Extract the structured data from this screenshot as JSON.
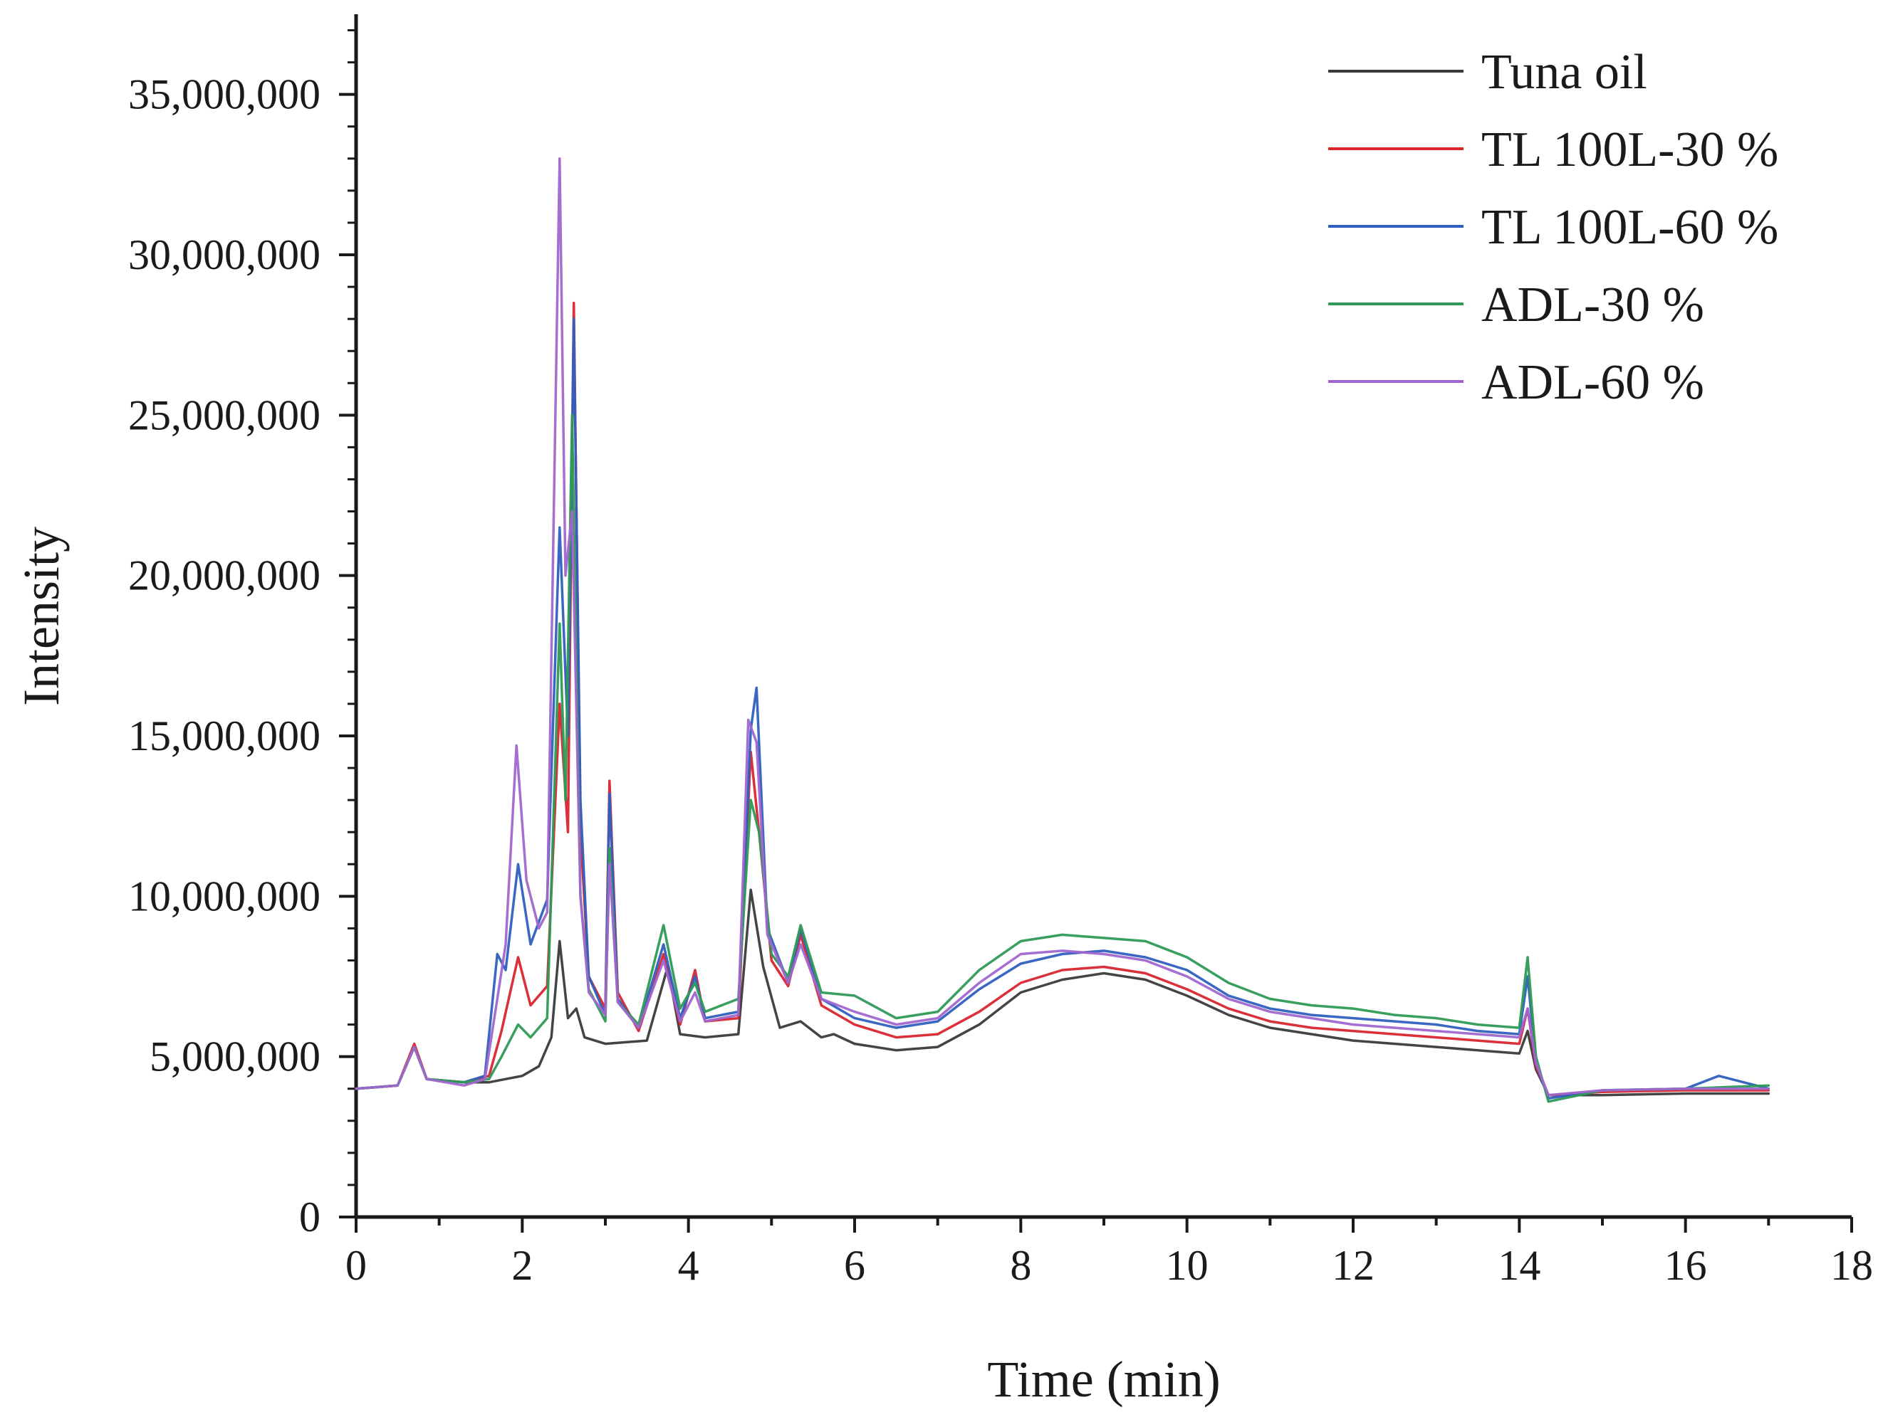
{
  "chart_data": {
    "type": "line",
    "title": "",
    "xlabel": "Time (min)",
    "ylabel": "Intensity",
    "xlim": [
      0,
      18
    ],
    "ylim": [
      0,
      37500000
    ],
    "x_ticks": [
      0,
      2,
      4,
      6,
      8,
      10,
      12,
      14,
      16,
      18
    ],
    "x_tick_labels": [
      "0",
      "2",
      "4",
      "6",
      "8",
      "10",
      "12",
      "14",
      "16",
      "18"
    ],
    "y_ticks": [
      0,
      5000000,
      10000000,
      15000000,
      20000000,
      25000000,
      30000000,
      35000000
    ],
    "y_tick_labels": [
      "0",
      "5,000,000",
      "10,000,000",
      "15,000,000",
      "20,000,000",
      "25,000,000",
      "30,000,000",
      "35,000,000"
    ],
    "legend_position": "top-right",
    "grid": false,
    "series": [
      {
        "name": "Tuna oil",
        "color": "#3a3a3a",
        "points": [
          [
            0,
            4000000
          ],
          [
            0.5,
            4100000
          ],
          [
            0.7,
            5300000
          ],
          [
            0.85,
            4300000
          ],
          [
            1.3,
            4200000
          ],
          [
            1.6,
            4200000
          ],
          [
            2.0,
            4400000
          ],
          [
            2.2,
            4700000
          ],
          [
            2.35,
            5600000
          ],
          [
            2.45,
            8600000
          ],
          [
            2.55,
            6200000
          ],
          [
            2.65,
            6500000
          ],
          [
            2.75,
            5600000
          ],
          [
            3.0,
            5400000
          ],
          [
            3.5,
            5500000
          ],
          [
            3.75,
            7800000
          ],
          [
            3.9,
            5700000
          ],
          [
            4.2,
            5600000
          ],
          [
            4.6,
            5700000
          ],
          [
            4.75,
            10200000
          ],
          [
            4.9,
            7800000
          ],
          [
            5.1,
            5900000
          ],
          [
            5.35,
            6100000
          ],
          [
            5.6,
            5600000
          ],
          [
            5.75,
            5700000
          ],
          [
            6.0,
            5400000
          ],
          [
            6.5,
            5200000
          ],
          [
            7.0,
            5300000
          ],
          [
            7.5,
            6000000
          ],
          [
            8.0,
            7000000
          ],
          [
            8.5,
            7400000
          ],
          [
            9.0,
            7600000
          ],
          [
            9.5,
            7400000
          ],
          [
            10.0,
            6900000
          ],
          [
            10.5,
            6300000
          ],
          [
            11.0,
            5900000
          ],
          [
            11.5,
            5700000
          ],
          [
            12.0,
            5500000
          ],
          [
            12.5,
            5400000
          ],
          [
            13.0,
            5300000
          ],
          [
            13.5,
            5200000
          ],
          [
            14.0,
            5100000
          ],
          [
            14.1,
            5800000
          ],
          [
            14.2,
            4600000
          ],
          [
            14.35,
            3800000
          ],
          [
            15.0,
            3800000
          ],
          [
            16.0,
            3850000
          ],
          [
            17.0,
            3850000
          ]
        ]
      },
      {
        "name": "TL 100L-30 %",
        "color": "#d9252e",
        "points": [
          [
            0,
            4000000
          ],
          [
            0.5,
            4100000
          ],
          [
            0.7,
            5400000
          ],
          [
            0.85,
            4300000
          ],
          [
            1.3,
            4200000
          ],
          [
            1.6,
            4400000
          ],
          [
            1.75,
            5800000
          ],
          [
            1.95,
            8100000
          ],
          [
            2.1,
            6600000
          ],
          [
            2.3,
            7200000
          ],
          [
            2.45,
            16000000
          ],
          [
            2.55,
            12000000
          ],
          [
            2.62,
            28500000
          ],
          [
            2.7,
            12000000
          ],
          [
            2.8,
            7500000
          ],
          [
            3.0,
            6500000
          ],
          [
            3.05,
            13600000
          ],
          [
            3.15,
            7000000
          ],
          [
            3.4,
            5800000
          ],
          [
            3.7,
            8200000
          ],
          [
            3.9,
            6000000
          ],
          [
            4.08,
            7700000
          ],
          [
            4.2,
            6100000
          ],
          [
            4.6,
            6200000
          ],
          [
            4.75,
            14500000
          ],
          [
            4.85,
            12000000
          ],
          [
            5.0,
            8000000
          ],
          [
            5.2,
            7200000
          ],
          [
            5.35,
            8800000
          ],
          [
            5.6,
            6600000
          ],
          [
            6.0,
            6000000
          ],
          [
            6.5,
            5600000
          ],
          [
            7.0,
            5700000
          ],
          [
            7.5,
            6400000
          ],
          [
            8.0,
            7300000
          ],
          [
            8.5,
            7700000
          ],
          [
            9.0,
            7800000
          ],
          [
            9.5,
            7600000
          ],
          [
            10.0,
            7100000
          ],
          [
            10.5,
            6500000
          ],
          [
            11.0,
            6100000
          ],
          [
            11.5,
            5900000
          ],
          [
            12.0,
            5800000
          ],
          [
            12.5,
            5700000
          ],
          [
            13.0,
            5600000
          ],
          [
            13.5,
            5500000
          ],
          [
            14.0,
            5400000
          ],
          [
            14.1,
            6500000
          ],
          [
            14.2,
            4700000
          ],
          [
            14.35,
            3800000
          ],
          [
            15.0,
            3900000
          ],
          [
            16.0,
            3950000
          ],
          [
            17.0,
            3950000
          ]
        ]
      },
      {
        "name": "TL 100L-60 %",
        "color": "#2f5fbf",
        "points": [
          [
            0,
            4000000
          ],
          [
            0.5,
            4100000
          ],
          [
            0.7,
            5300000
          ],
          [
            0.85,
            4300000
          ],
          [
            1.3,
            4200000
          ],
          [
            1.55,
            4400000
          ],
          [
            1.7,
            8200000
          ],
          [
            1.8,
            7700000
          ],
          [
            1.95,
            11000000
          ],
          [
            2.1,
            8500000
          ],
          [
            2.3,
            9900000
          ],
          [
            2.45,
            21500000
          ],
          [
            2.55,
            15000000
          ],
          [
            2.62,
            28000000
          ],
          [
            2.7,
            13000000
          ],
          [
            2.8,
            7500000
          ],
          [
            3.0,
            6300000
          ],
          [
            3.05,
            13200000
          ],
          [
            3.15,
            6800000
          ],
          [
            3.4,
            5900000
          ],
          [
            3.7,
            8500000
          ],
          [
            3.9,
            6200000
          ],
          [
            4.08,
            7500000
          ],
          [
            4.2,
            6200000
          ],
          [
            4.6,
            6400000
          ],
          [
            4.75,
            15200000
          ],
          [
            4.82,
            16500000
          ],
          [
            4.95,
            9000000
          ],
          [
            5.2,
            7300000
          ],
          [
            5.35,
            9000000
          ],
          [
            5.6,
            6800000
          ],
          [
            6.0,
            6200000
          ],
          [
            6.5,
            5900000
          ],
          [
            7.0,
            6100000
          ],
          [
            7.5,
            7100000
          ],
          [
            8.0,
            7900000
          ],
          [
            8.5,
            8200000
          ],
          [
            9.0,
            8300000
          ],
          [
            9.5,
            8100000
          ],
          [
            10.0,
            7700000
          ],
          [
            10.5,
            6900000
          ],
          [
            11.0,
            6500000
          ],
          [
            11.5,
            6300000
          ],
          [
            12.0,
            6200000
          ],
          [
            12.5,
            6100000
          ],
          [
            13.0,
            6000000
          ],
          [
            13.5,
            5800000
          ],
          [
            14.0,
            5700000
          ],
          [
            14.1,
            7500000
          ],
          [
            14.2,
            4800000
          ],
          [
            14.35,
            3700000
          ],
          [
            15.0,
            3950000
          ],
          [
            16.0,
            4000000
          ],
          [
            16.4,
            4400000
          ],
          [
            17.0,
            4000000
          ]
        ]
      },
      {
        "name": "ADL-30 %",
        "color": "#2e9a55",
        "points": [
          [
            0,
            4000000
          ],
          [
            0.5,
            4100000
          ],
          [
            0.7,
            5300000
          ],
          [
            0.85,
            4300000
          ],
          [
            1.3,
            4200000
          ],
          [
            1.6,
            4300000
          ],
          [
            1.75,
            5000000
          ],
          [
            1.95,
            6000000
          ],
          [
            2.1,
            5600000
          ],
          [
            2.3,
            6200000
          ],
          [
            2.45,
            18500000
          ],
          [
            2.52,
            13000000
          ],
          [
            2.6,
            25000000
          ],
          [
            2.7,
            10000000
          ],
          [
            2.8,
            7100000
          ],
          [
            3.0,
            6100000
          ],
          [
            3.05,
            11500000
          ],
          [
            3.15,
            6700000
          ],
          [
            3.4,
            6000000
          ],
          [
            3.7,
            9100000
          ],
          [
            3.9,
            6500000
          ],
          [
            4.08,
            7300000
          ],
          [
            4.2,
            6400000
          ],
          [
            4.6,
            6800000
          ],
          [
            4.75,
            13000000
          ],
          [
            4.85,
            12000000
          ],
          [
            5.0,
            8200000
          ],
          [
            5.2,
            7500000
          ],
          [
            5.35,
            9100000
          ],
          [
            5.6,
            7000000
          ],
          [
            6.0,
            6900000
          ],
          [
            6.5,
            6200000
          ],
          [
            7.0,
            6400000
          ],
          [
            7.5,
            7700000
          ],
          [
            8.0,
            8600000
          ],
          [
            8.5,
            8800000
          ],
          [
            9.0,
            8700000
          ],
          [
            9.5,
            8600000
          ],
          [
            10.0,
            8100000
          ],
          [
            10.5,
            7300000
          ],
          [
            11.0,
            6800000
          ],
          [
            11.5,
            6600000
          ],
          [
            12.0,
            6500000
          ],
          [
            12.5,
            6300000
          ],
          [
            13.0,
            6200000
          ],
          [
            13.5,
            6000000
          ],
          [
            14.0,
            5900000
          ],
          [
            14.1,
            8100000
          ],
          [
            14.2,
            5000000
          ],
          [
            14.35,
            3600000
          ],
          [
            15.0,
            3950000
          ],
          [
            16.0,
            4000000
          ],
          [
            17.0,
            4100000
          ]
        ]
      },
      {
        "name": "ADL-60 %",
        "color": "#a066cf",
        "points": [
          [
            0,
            4000000
          ],
          [
            0.5,
            4100000
          ],
          [
            0.7,
            5300000
          ],
          [
            0.85,
            4300000
          ],
          [
            1.3,
            4100000
          ],
          [
            1.55,
            4300000
          ],
          [
            1.7,
            6800000
          ],
          [
            1.8,
            8500000
          ],
          [
            1.93,
            14700000
          ],
          [
            2.05,
            10500000
          ],
          [
            2.2,
            9000000
          ],
          [
            2.3,
            9500000
          ],
          [
            2.45,
            33000000
          ],
          [
            2.52,
            20000000
          ],
          [
            2.6,
            22000000
          ],
          [
            2.7,
            10000000
          ],
          [
            2.8,
            7000000
          ],
          [
            3.0,
            6300000
          ],
          [
            3.05,
            11000000
          ],
          [
            3.15,
            6700000
          ],
          [
            3.4,
            5900000
          ],
          [
            3.7,
            8000000
          ],
          [
            3.9,
            6100000
          ],
          [
            4.08,
            7000000
          ],
          [
            4.2,
            6100000
          ],
          [
            4.6,
            6300000
          ],
          [
            4.72,
            15500000
          ],
          [
            4.82,
            14800000
          ],
          [
            4.95,
            8800000
          ],
          [
            5.2,
            7300000
          ],
          [
            5.35,
            8500000
          ],
          [
            5.6,
            6800000
          ],
          [
            6.0,
            6400000
          ],
          [
            6.5,
            6000000
          ],
          [
            7.0,
            6200000
          ],
          [
            7.5,
            7300000
          ],
          [
            8.0,
            8200000
          ],
          [
            8.5,
            8300000
          ],
          [
            9.0,
            8200000
          ],
          [
            9.5,
            8000000
          ],
          [
            10.0,
            7500000
          ],
          [
            10.5,
            6800000
          ],
          [
            11.0,
            6400000
          ],
          [
            11.5,
            6200000
          ],
          [
            12.0,
            6000000
          ],
          [
            12.5,
            5900000
          ],
          [
            13.0,
            5800000
          ],
          [
            13.5,
            5700000
          ],
          [
            14.0,
            5600000
          ],
          [
            14.1,
            6500000
          ],
          [
            14.2,
            4800000
          ],
          [
            14.35,
            3800000
          ],
          [
            15.0,
            3950000
          ],
          [
            16.0,
            4000000
          ],
          [
            17.0,
            4000000
          ]
        ]
      }
    ]
  }
}
